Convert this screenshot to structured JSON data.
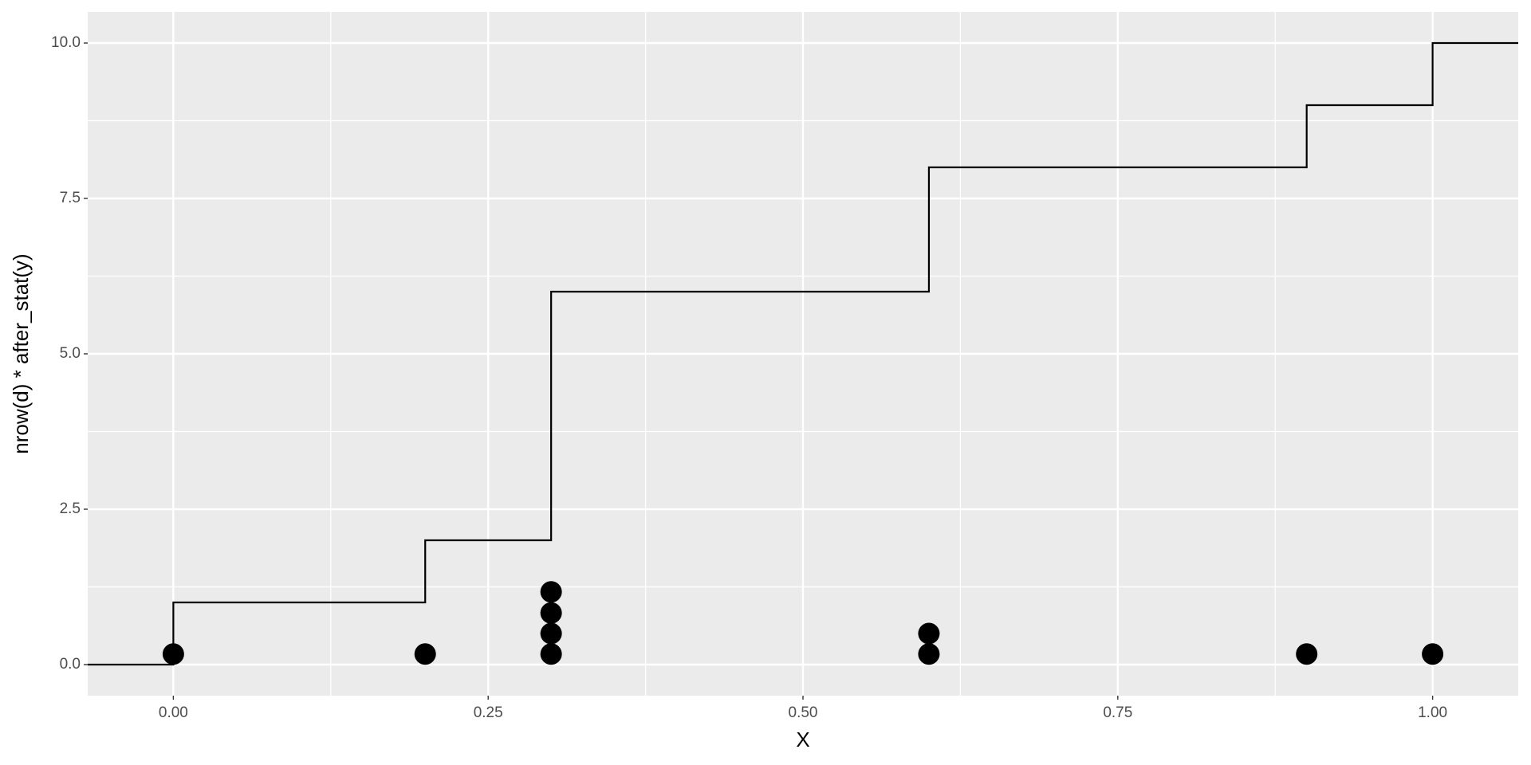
{
  "chart_data": {
    "type": "step",
    "x_label": "X",
    "y_label": "nrow(d) * after_stat(y)",
    "xlim": [
      -0.068,
      1.068
    ],
    "ylim": [
      -0.5,
      10.5
    ],
    "xticks": [
      {
        "value": 0,
        "label": "0.00"
      },
      {
        "value": 0.25,
        "label": "0.25"
      },
      {
        "value": 0.5,
        "label": "0.50"
      },
      {
        "value": 0.75,
        "label": "0.75"
      },
      {
        "value": 1,
        "label": "1.00"
      }
    ],
    "yticks": [
      {
        "value": 0,
        "label": "0.0"
      },
      2.5,
      {
        "value": 5,
        "label": "5.0"
      },
      7.5,
      {
        "value": 10,
        "label": "10.0"
      }
    ],
    "grid": true,
    "minor_grid": true,
    "series": [
      {
        "type": "step",
        "color": "#000000",
        "x": [
          -0.068,
          0,
          0.2,
          0.3,
          0.6,
          0.9,
          1.0,
          1.068
        ],
        "values": [
          0,
          1,
          2,
          6,
          8,
          9,
          10,
          10
        ]
      },
      {
        "type": "scatter",
        "color": "#000000",
        "x": [
          0,
          0.2,
          0.3,
          0.3,
          0.3,
          0.3,
          0.6,
          0.6,
          0.9,
          1.0
        ],
        "values": [
          0.17,
          0.17,
          0.17,
          0.5,
          0.83,
          1.17,
          0.17,
          0.5,
          0.17,
          0.17
        ]
      }
    ]
  }
}
